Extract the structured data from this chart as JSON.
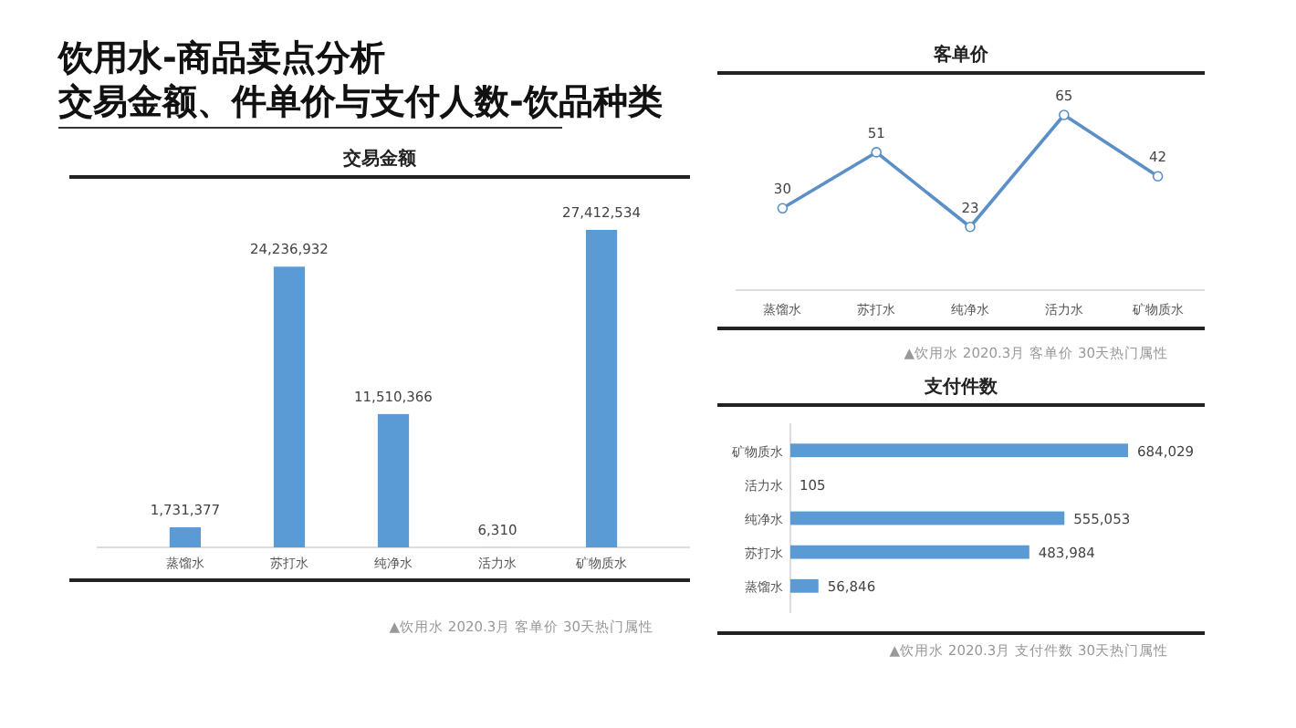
{
  "chart_data": [
    {
      "type": "other",
      "title": "饮用水-商品卖点分析",
      "subtitle": "交易金额、件单价与支付人数-饮品种类"
    },
    {
      "type": "bar",
      "title": "交易金额",
      "categories": [
        "蒸馏水",
        "苏打水",
        "纯净水",
        "活力水",
        "矿物质水"
      ],
      "values": [
        1731377,
        24236932,
        11510366,
        6310,
        27412534
      ],
      "value_labels": [
        "1,731,377",
        "24,236,932",
        "11,510,366",
        "6,310",
        "27,412,534"
      ],
      "color": "#5b9bd5",
      "annotations": [
        "▲饮用水 2020.3月 客单价 30天热门属性"
      ]
    },
    {
      "type": "line",
      "title": "客单价",
      "categories": [
        "蒸馏水",
        "苏打水",
        "纯净水",
        "活力水",
        "矿物质水"
      ],
      "values": [
        30,
        51,
        23,
        65,
        42
      ],
      "color": "#5b8fc7",
      "marker": "circle",
      "data_labels": true,
      "annotations": [
        "▲饮用水 2020.3月 客单价 30天热门属性"
      ]
    },
    {
      "type": "bar",
      "orientation": "horizontal",
      "title": "支付件数",
      "categories": [
        "矿物质水",
        "活力水",
        "纯净水",
        "苏打水",
        "蒸馏水"
      ],
      "values": [
        684029,
        105,
        555053,
        483984,
        56846
      ],
      "value_labels": [
        "684,029",
        "105",
        "555,053",
        "483,984",
        "56,846"
      ],
      "color": "#5b9bd5",
      "annotations": [
        "▲饮用水 2020.3月 支付件数 30天热门属性"
      ]
    }
  ]
}
